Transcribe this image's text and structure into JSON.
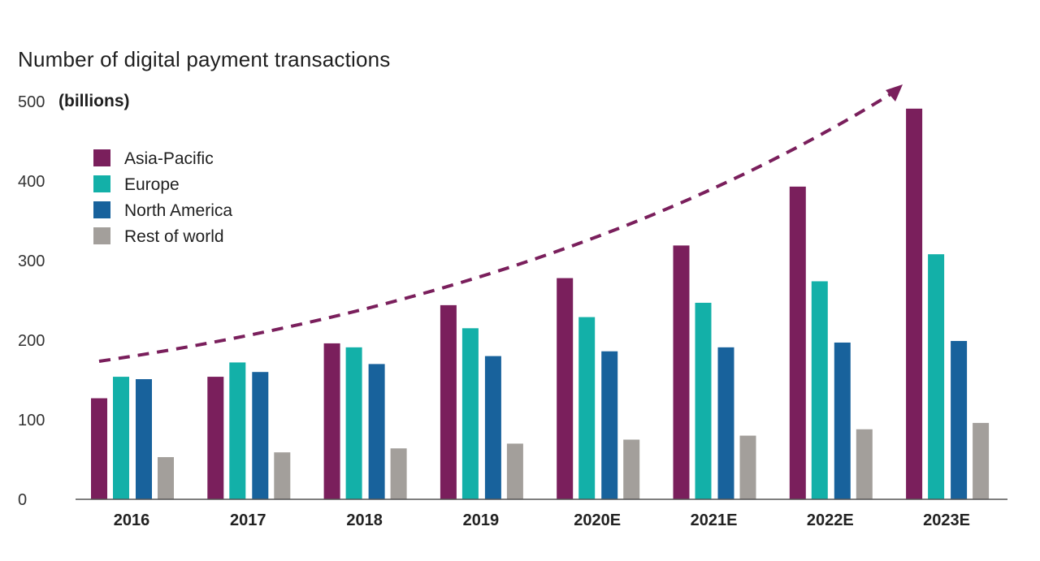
{
  "chart_data": {
    "type": "bar",
    "title": "Number of digital payment transactions",
    "ylabel": "(billions)",
    "ylim": [
      0,
      500
    ],
    "yticks": [
      0,
      100,
      200,
      300,
      400,
      500
    ],
    "categories": [
      "2016",
      "2017",
      "2018",
      "2019",
      "2020E",
      "2021E",
      "2022E",
      "2023E"
    ],
    "series": [
      {
        "name": "Asia-Pacific",
        "color": "#7a1f5c",
        "values": [
          127,
          154,
          196,
          244,
          278,
          319,
          393,
          491
        ]
      },
      {
        "name": "Europe",
        "color": "#13b0a8",
        "values": [
          154,
          172,
          191,
          215,
          229,
          247,
          274,
          308
        ]
      },
      {
        "name": "North America",
        "color": "#18629c",
        "values": [
          151,
          160,
          170,
          180,
          186,
          191,
          197,
          199
        ]
      },
      {
        "name": "Rest of world",
        "color": "#a39f9b",
        "values": [
          53,
          59,
          64,
          70,
          75,
          80,
          88,
          96
        ]
      }
    ],
    "legend_position": "top-left",
    "grid": false,
    "trend_arrow": {
      "style": "dashed",
      "color": "#7a1f5c"
    }
  }
}
